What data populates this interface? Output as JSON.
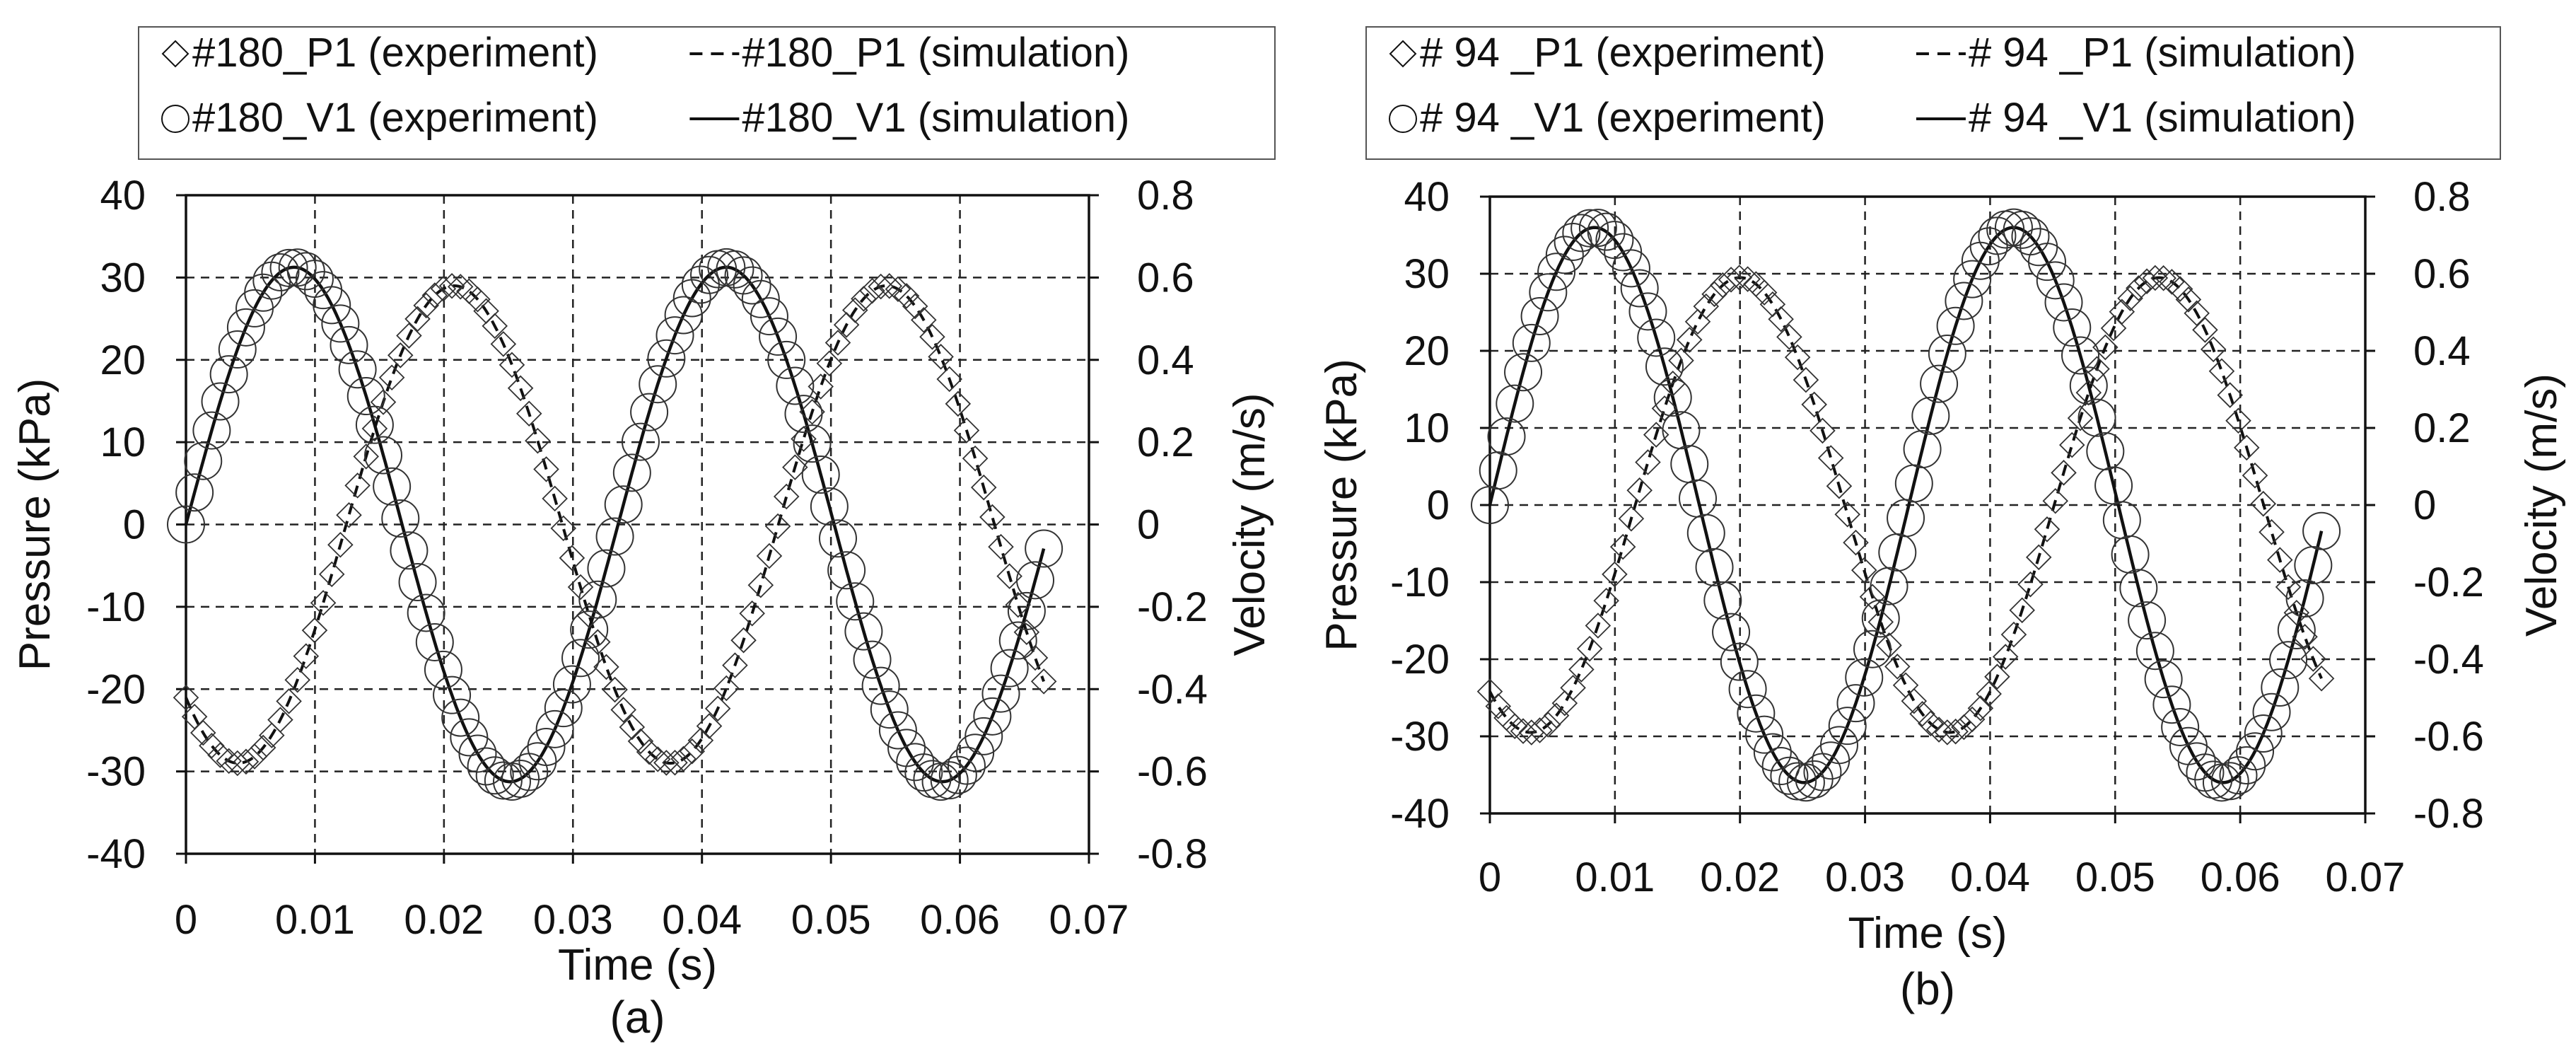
{
  "colors": {
    "line": "#111111",
    "grid": "#222222",
    "background": "#ffffff",
    "legend_border": "#555555"
  },
  "chart_data": [
    {
      "type": "line",
      "panel_label": "(a)",
      "xlabel": "Time (s)",
      "ylabel": "Pressure (kPa)",
      "y2label": "Velocity (m/s)",
      "xlim": [
        0,
        0.07
      ],
      "ylim": [
        -40,
        40
      ],
      "y2lim": [
        -0.8,
        0.8
      ],
      "xticks": [
        "0",
        "0.01",
        "0.02",
        "0.03",
        "0.04",
        "0.05",
        "0.06",
        "0.07"
      ],
      "yticks": [
        "40",
        "30",
        "20",
        "10",
        "0",
        "-10",
        "-20",
        "-30",
        "-40"
      ],
      "y2ticks": [
        "0.8",
        "0.6",
        "0.4",
        "0.2",
        "0",
        "-0.2",
        "-0.4",
        "-0.6",
        "-0.8"
      ],
      "grid": true,
      "legend_position": "top",
      "signal": {
        "period": 0.0335,
        "t_end": 0.0665,
        "pressure_amp": 29,
        "pressure_lag": 0.00405,
        "velocity_amp": 0.625
      },
      "series": [
        {
          "name": "#180_P1 (experiment)",
          "axis": "left",
          "style": "diamond"
        },
        {
          "name": "#180_P1 (simulation)",
          "axis": "left",
          "style": "dashed"
        },
        {
          "name": "#180_V1 (experiment)",
          "axis": "right",
          "style": "circle"
        },
        {
          "name": "#180_V1 (simulation)",
          "axis": "right",
          "style": "solid"
        }
      ]
    },
    {
      "type": "line",
      "panel_label": "(b)",
      "xlabel": "Time (s)",
      "ylabel": "Pressure (kPa)",
      "y2label": "Velocity (m/s)",
      "xlim": [
        0,
        0.07
      ],
      "ylim": [
        -40,
        40
      ],
      "y2lim": [
        -0.8,
        0.8
      ],
      "xticks": [
        "0",
        "0.01",
        "0.02",
        "0.03",
        "0.04",
        "0.05",
        "0.06",
        "0.07"
      ],
      "yticks": [
        "40",
        "30",
        "20",
        "10",
        "0",
        "-10",
        "-20",
        "-30",
        "-40"
      ],
      "y2ticks": [
        "0.8",
        "0.6",
        "0.4",
        "0.2",
        "0",
        "-0.2",
        "-0.4",
        "-0.6",
        "-0.8"
      ],
      "grid": true,
      "legend_position": "top",
      "signal": {
        "period": 0.0335,
        "t_end": 0.0665,
        "pressure_amp": 29.5,
        "pressure_lag": 0.00325,
        "velocity_amp": 0.72
      },
      "series": [
        {
          "name": "# 94 _P1 (experiment)",
          "axis": "left",
          "style": "diamond"
        },
        {
          "name": "# 94 _P1 (simulation)",
          "axis": "left",
          "style": "dashed"
        },
        {
          "name": "# 94 _V1 (experiment)",
          "axis": "right",
          "style": "circle"
        },
        {
          "name": "# 94 _V1 (simulation)",
          "axis": "right",
          "style": "solid"
        }
      ]
    }
  ]
}
